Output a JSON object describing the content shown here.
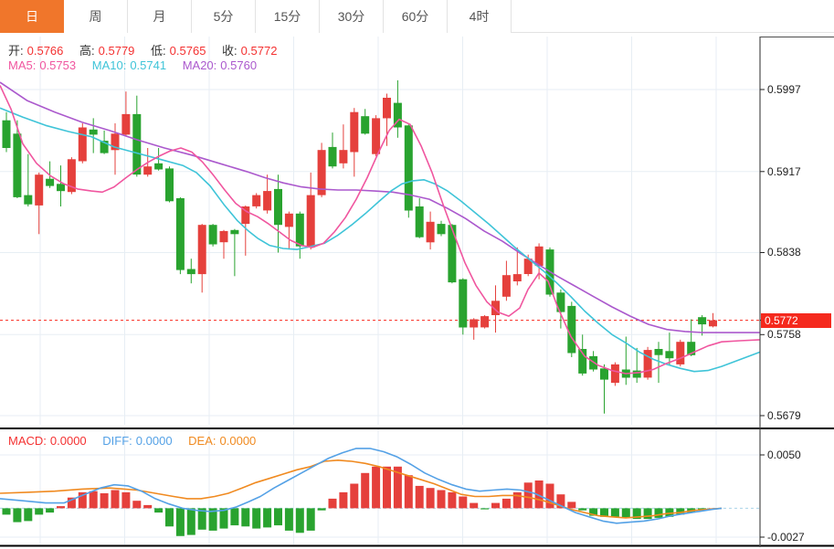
{
  "tabs": {
    "items": [
      {
        "label": "日",
        "active": true
      },
      {
        "label": "周",
        "active": false
      },
      {
        "label": "月",
        "active": false
      },
      {
        "label": "5分",
        "active": false
      },
      {
        "label": "15分",
        "active": false
      },
      {
        "label": "30分",
        "active": false
      },
      {
        "label": "60分",
        "active": false
      },
      {
        "label": "4时",
        "active": false
      }
    ]
  },
  "ohlc_legend": {
    "open_label": "开:",
    "open": "0.5766",
    "high_label": "高:",
    "high": "0.5779",
    "low_label": "低:",
    "low": "0.5765",
    "close_label": "收:",
    "close": "0.5772"
  },
  "ma_legend": {
    "ma5_label": "MA5:",
    "ma5": "0.5753",
    "ma10_label": "MA10:",
    "ma10": "0.5741",
    "ma20_label": "MA20:",
    "ma20": "0.5760"
  },
  "macd_legend": {
    "macd_label": "MACD:",
    "macd": "0.0000",
    "diff_label": "DIFF:",
    "diff": "0.0000",
    "dea_label": "DEA:",
    "dea": "0.0000"
  },
  "colors": {
    "up": "#e5403c",
    "down": "#29a32f",
    "ma5": "#f0569f",
    "ma10": "#3fc4d8",
    "ma20": "#ab59cd",
    "diff": "#54a1e6",
    "dea": "#f08a20",
    "price_line": "#fa2a1e",
    "badge": "#f5291d",
    "grid": "#e7eef4",
    "zero_line": "#a9d3e8",
    "axis_line": "#4d4d4d",
    "accent_tab": "#f0762b"
  },
  "chart_data": {
    "type": "candlestick+macd",
    "title": "",
    "legend_position": "top-left",
    "grid": true,
    "price_axis": {
      "labels": [
        "0.5997",
        "0.5917",
        "0.5838",
        "0.5758",
        "0.5679"
      ],
      "values": [
        0.5997,
        0.5917,
        0.5838,
        0.5758,
        0.5679
      ],
      "current_price": 0.5772,
      "current_price_label": "0.5772"
    },
    "macd_axis": {
      "labels": [
        "0.0050",
        "-0.0027"
      ],
      "values": [
        0.005,
        -0.0027
      ]
    },
    "candles": [
      [
        0.5967,
        0.5975,
        0.5936,
        0.594
      ],
      [
        0.5954,
        0.5967,
        0.5891,
        0.5892
      ],
      [
        0.5894,
        0.5934,
        0.5883,
        0.5885
      ],
      [
        0.5884,
        0.5916,
        0.5856,
        0.5914
      ],
      [
        0.591,
        0.5927,
        0.5901,
        0.5903
      ],
      [
        0.5905,
        0.5923,
        0.5883,
        0.5898
      ],
      [
        0.5897,
        0.5931,
        0.5895,
        0.5929
      ],
      [
        0.5927,
        0.5964,
        0.5925,
        0.596
      ],
      [
        0.5958,
        0.5969,
        0.5935,
        0.5953
      ],
      [
        0.5947,
        0.5957,
        0.5934,
        0.5935
      ],
      [
        0.5938,
        0.5964,
        0.5914,
        0.5954
      ],
      [
        0.5953,
        0.5995,
        0.5951,
        0.5973
      ],
      [
        0.5973,
        0.5991,
        0.5912,
        0.5914
      ],
      [
        0.5914,
        0.594,
        0.5912,
        0.5922
      ],
      [
        0.5925,
        0.594,
        0.5918,
        0.5919
      ],
      [
        0.592,
        0.5922,
        0.5887,
        0.5888
      ],
      [
        0.5891,
        0.5892,
        0.5817,
        0.5821
      ],
      [
        0.5822,
        0.5832,
        0.5808,
        0.5817
      ],
      [
        0.5817,
        0.5866,
        0.5799,
        0.5865
      ],
      [
        0.5865,
        0.5866,
        0.5844,
        0.5846
      ],
      [
        0.5848,
        0.586,
        0.5832,
        0.5859
      ],
      [
        0.586,
        0.5861,
        0.5815,
        0.5856
      ],
      [
        0.5866,
        0.5884,
        0.5835,
        0.5883
      ],
      [
        0.5883,
        0.5896,
        0.5881,
        0.5894
      ],
      [
        0.5879,
        0.5914,
        0.5876,
        0.5898
      ],
      [
        0.59,
        0.5914,
        0.5838,
        0.5865
      ],
      [
        0.5863,
        0.5878,
        0.5841,
        0.5876
      ],
      [
        0.5876,
        0.5878,
        0.5832,
        0.5844
      ],
      [
        0.5843,
        0.5916,
        0.5841,
        0.5894
      ],
      [
        0.5894,
        0.5945,
        0.5892,
        0.5938
      ],
      [
        0.5941,
        0.5955,
        0.592,
        0.5922
      ],
      [
        0.5925,
        0.5963,
        0.592,
        0.5938
      ],
      [
        0.5936,
        0.5979,
        0.5912,
        0.5975
      ],
      [
        0.5971,
        0.5978,
        0.5953,
        0.5954
      ],
      [
        0.5934,
        0.5972,
        0.5932,
        0.5969
      ],
      [
        0.5969,
        0.5993,
        0.5942,
        0.5989
      ],
      [
        0.5984,
        0.6006,
        0.595,
        0.596
      ],
      [
        0.5962,
        0.5963,
        0.5872,
        0.5879
      ],
      [
        0.5883,
        0.5891,
        0.5852,
        0.5853
      ],
      [
        0.5848,
        0.5878,
        0.5841,
        0.5868
      ],
      [
        0.5866,
        0.5869,
        0.5854,
        0.5856
      ],
      [
        0.5865,
        0.5866,
        0.5808,
        0.5809
      ],
      [
        0.5812,
        0.5813,
        0.5758,
        0.5765
      ],
      [
        0.5765,
        0.5774,
        0.5753,
        0.5773
      ],
      [
        0.5765,
        0.5777,
        0.5764,
        0.5776
      ],
      [
        0.5777,
        0.5806,
        0.576,
        0.5791
      ],
      [
        0.5795,
        0.583,
        0.5791,
        0.5816
      ],
      [
        0.581,
        0.5843,
        0.5806,
        0.5817
      ],
      [
        0.5817,
        0.5836,
        0.5815,
        0.5832
      ],
      [
        0.5825,
        0.5847,
        0.5812,
        0.5844
      ],
      [
        0.5841,
        0.5843,
        0.5795,
        0.5797
      ],
      [
        0.5799,
        0.5802,
        0.5764,
        0.578
      ],
      [
        0.5786,
        0.579,
        0.5736,
        0.574
      ],
      [
        0.5744,
        0.5758,
        0.5718,
        0.572
      ],
      [
        0.5737,
        0.5742,
        0.5722,
        0.5724
      ],
      [
        0.5725,
        0.5729,
        0.5681,
        0.5714
      ],
      [
        0.5711,
        0.5731,
        0.5708,
        0.5729
      ],
      [
        0.5724,
        0.5756,
        0.5709,
        0.5716
      ],
      [
        0.5723,
        0.5745,
        0.5711,
        0.5716
      ],
      [
        0.5716,
        0.5746,
        0.5714,
        0.5743
      ],
      [
        0.5744,
        0.5751,
        0.5711,
        0.5738
      ],
      [
        0.5742,
        0.576,
        0.5728,
        0.5735
      ],
      [
        0.5729,
        0.5753,
        0.5727,
        0.5751
      ],
      [
        0.5751,
        0.5773,
        0.5737,
        0.5738
      ],
      [
        0.5775,
        0.5777,
        0.5757,
        0.5768
      ],
      [
        0.5766,
        0.5779,
        0.5765,
        0.5772
      ]
    ],
    "ma5": [
      [
        0,
        0.6001
      ],
      [
        12,
        0.5978
      ],
      [
        25,
        0.5944
      ],
      [
        40,
        0.5925
      ],
      [
        55,
        0.5913
      ],
      [
        70,
        0.5905
      ],
      [
        85,
        0.59
      ],
      [
        100,
        0.5898
      ],
      [
        112,
        0.5897
      ],
      [
        125,
        0.5902
      ],
      [
        138,
        0.5911
      ],
      [
        150,
        0.5919
      ],
      [
        162,
        0.5926
      ],
      [
        174,
        0.5932
      ],
      [
        186,
        0.5937
      ],
      [
        198,
        0.594
      ],
      [
        210,
        0.5936
      ],
      [
        222,
        0.5926
      ],
      [
        234,
        0.5913
      ],
      [
        246,
        0.5899
      ],
      [
        258,
        0.5886
      ],
      [
        270,
        0.5878
      ],
      [
        282,
        0.5873
      ],
      [
        294,
        0.5866
      ],
      [
        306,
        0.5858
      ],
      [
        318,
        0.585
      ],
      [
        330,
        0.5845
      ],
      [
        342,
        0.5843
      ],
      [
        354,
        0.5847
      ],
      [
        366,
        0.5858
      ],
      [
        378,
        0.5872
      ],
      [
        390,
        0.589
      ],
      [
        402,
        0.5911
      ],
      [
        414,
        0.5935
      ],
      [
        426,
        0.5957
      ],
      [
        437,
        0.5968
      ],
      [
        449,
        0.5963
      ],
      [
        461,
        0.5942
      ],
      [
        473,
        0.5916
      ],
      [
        485,
        0.5885
      ],
      [
        497,
        0.5856
      ],
      [
        509,
        0.5828
      ],
      [
        521,
        0.5806
      ],
      [
        533,
        0.579
      ],
      [
        545,
        0.578
      ],
      [
        557,
        0.5776
      ],
      [
        569,
        0.5784
      ],
      [
        578,
        0.5802
      ],
      [
        590,
        0.5818
      ],
      [
        600,
        0.581
      ],
      [
        610,
        0.5786
      ],
      [
        625,
        0.5756
      ],
      [
        640,
        0.5737
      ],
      [
        655,
        0.5728
      ],
      [
        670,
        0.5723
      ],
      [
        685,
        0.572
      ],
      [
        700,
        0.5721
      ],
      [
        715,
        0.5724
      ],
      [
        730,
        0.573
      ],
      [
        745,
        0.5735
      ],
      [
        760,
        0.5741
      ],
      [
        775,
        0.5747
      ],
      [
        790,
        0.5751
      ],
      [
        810,
        0.5752
      ],
      [
        832,
        0.5753
      ]
    ],
    "ma10": [
      [
        0,
        0.5979
      ],
      [
        25,
        0.597
      ],
      [
        50,
        0.5962
      ],
      [
        75,
        0.5956
      ],
      [
        100,
        0.5951
      ],
      [
        125,
        0.5941
      ],
      [
        150,
        0.5935
      ],
      [
        175,
        0.5929
      ],
      [
        200,
        0.5923
      ],
      [
        215,
        0.5916
      ],
      [
        230,
        0.5903
      ],
      [
        245,
        0.5885
      ],
      [
        260,
        0.5869
      ],
      [
        272,
        0.5859
      ],
      [
        282,
        0.5852
      ],
      [
        295,
        0.5845
      ],
      [
        310,
        0.5842
      ],
      [
        325,
        0.5841
      ],
      [
        340,
        0.5844
      ],
      [
        355,
        0.5847
      ],
      [
        370,
        0.5855
      ],
      [
        385,
        0.5865
      ],
      [
        400,
        0.5876
      ],
      [
        415,
        0.5888
      ],
      [
        428,
        0.5898
      ],
      [
        440,
        0.5905
      ],
      [
        452,
        0.5908
      ],
      [
        464,
        0.5909
      ],
      [
        476,
        0.5905
      ],
      [
        490,
        0.5898
      ],
      [
        505,
        0.5888
      ],
      [
        520,
        0.5877
      ],
      [
        535,
        0.5866
      ],
      [
        550,
        0.5854
      ],
      [
        565,
        0.5842
      ],
      [
        580,
        0.5831
      ],
      [
        595,
        0.582
      ],
      [
        610,
        0.5808
      ],
      [
        625,
        0.5795
      ],
      [
        640,
        0.5781
      ],
      [
        655,
        0.5769
      ],
      [
        670,
        0.5758
      ],
      [
        685,
        0.575
      ],
      [
        700,
        0.5741
      ],
      [
        715,
        0.5734
      ],
      [
        730,
        0.5729
      ],
      [
        745,
        0.5725
      ],
      [
        760,
        0.5722
      ],
      [
        775,
        0.5723
      ],
      [
        790,
        0.5727
      ],
      [
        805,
        0.5732
      ],
      [
        820,
        0.5737
      ],
      [
        832,
        0.5741
      ]
    ],
    "ma20": [
      [
        0,
        0.6004
      ],
      [
        30,
        0.5986
      ],
      [
        60,
        0.5975
      ],
      [
        90,
        0.5965
      ],
      [
        120,
        0.5957
      ],
      [
        150,
        0.5948
      ],
      [
        180,
        0.594
      ],
      [
        210,
        0.5933
      ],
      [
        240,
        0.5925
      ],
      [
        270,
        0.5917
      ],
      [
        290,
        0.5911
      ],
      [
        310,
        0.5906
      ],
      [
        330,
        0.5902
      ],
      [
        350,
        0.59
      ],
      [
        370,
        0.5899
      ],
      [
        390,
        0.5899
      ],
      [
        410,
        0.5898
      ],
      [
        430,
        0.5897
      ],
      [
        450,
        0.5894
      ],
      [
        470,
        0.589
      ],
      [
        490,
        0.5881
      ],
      [
        510,
        0.5871
      ],
      [
        530,
        0.5859
      ],
      [
        550,
        0.5849
      ],
      [
        570,
        0.5837
      ],
      [
        590,
        0.5826
      ],
      [
        610,
        0.5815
      ],
      [
        630,
        0.5805
      ],
      [
        650,
        0.5795
      ],
      [
        670,
        0.5785
      ],
      [
        690,
        0.5776
      ],
      [
        710,
        0.5768
      ],
      [
        730,
        0.5763
      ],
      [
        750,
        0.5761
      ],
      [
        770,
        0.576
      ],
      [
        790,
        0.576
      ],
      [
        810,
        0.576
      ],
      [
        832,
        0.576
      ]
    ],
    "macd_hist": [
      -0.0006,
      -0.0013,
      -0.0012,
      -0.0006,
      -0.0004,
      0.0002,
      0.001,
      0.0015,
      0.0016,
      0.0014,
      0.0017,
      0.0015,
      0.0007,
      0.0003,
      -0.0004,
      -0.0017,
      -0.0026,
      -0.0025,
      -0.002,
      -0.0021,
      -0.0019,
      -0.0016,
      -0.0017,
      -0.0019,
      -0.0018,
      -0.0016,
      -0.0021,
      -0.0023,
      -0.0021,
      -0.0002,
      0.0009,
      0.0015,
      0.0023,
      0.0033,
      0.0039,
      0.0039,
      0.0039,
      0.0031,
      0.0021,
      0.0019,
      0.0017,
      0.0015,
      0.0011,
      0.0005,
      -0.0001,
      0.0005,
      0.0009,
      0.0015,
      0.0024,
      0.0026,
      0.0023,
      0.0013,
      0.0006,
      -0.0002,
      -0.0007,
      -0.0008,
      -0.0008,
      -0.0009,
      -0.001,
      -0.001,
      -0.0009,
      -0.0008,
      -0.0006,
      -0.0004,
      -0.0002,
      0.0
    ],
    "diff_line": [
      [
        0,
        0.0009
      ],
      [
        25,
        0.0007
      ],
      [
        50,
        0.0005
      ],
      [
        70,
        0.0005
      ],
      [
        90,
        0.0012
      ],
      [
        110,
        0.0019
      ],
      [
        125,
        0.0022
      ],
      [
        140,
        0.0021
      ],
      [
        155,
        0.0016
      ],
      [
        170,
        0.0009
      ],
      [
        185,
        0.0004
      ],
      [
        200,
        0.0
      ],
      [
        215,
        -0.0002
      ],
      [
        230,
        -0.0003
      ],
      [
        245,
        -0.0002
      ],
      [
        258,
        0.0001
      ],
      [
        272,
        0.0006
      ],
      [
        285,
        0.0011
      ],
      [
        300,
        0.0019
      ],
      [
        315,
        0.0026
      ],
      [
        330,
        0.0033
      ],
      [
        345,
        0.004
      ],
      [
        360,
        0.0047
      ],
      [
        375,
        0.0052
      ],
      [
        390,
        0.0056
      ],
      [
        405,
        0.0056
      ],
      [
        420,
        0.0053
      ],
      [
        435,
        0.0048
      ],
      [
        450,
        0.0041
      ],
      [
        465,
        0.0033
      ],
      [
        480,
        0.0027
      ],
      [
        495,
        0.0022
      ],
      [
        510,
        0.0018
      ],
      [
        525,
        0.0016
      ],
      [
        540,
        0.0017
      ],
      [
        555,
        0.0018
      ],
      [
        570,
        0.0017
      ],
      [
        585,
        0.0014
      ],
      [
        600,
        0.0008
      ],
      [
        615,
        0.0002
      ],
      [
        630,
        -0.0004
      ],
      [
        645,
        -0.0008
      ],
      [
        660,
        -0.0012
      ],
      [
        675,
        -0.0014
      ],
      [
        690,
        -0.0013
      ],
      [
        705,
        -0.0012
      ],
      [
        720,
        -0.001
      ],
      [
        735,
        -0.0007
      ],
      [
        750,
        -0.0005
      ],
      [
        765,
        -0.0003
      ],
      [
        780,
        -0.0001
      ],
      [
        790,
        0.0
      ]
    ],
    "dea_line": [
      [
        0,
        0.0014
      ],
      [
        30,
        0.0015
      ],
      [
        60,
        0.0016
      ],
      [
        90,
        0.0018
      ],
      [
        120,
        0.0019
      ],
      [
        150,
        0.0017
      ],
      [
        170,
        0.0014
      ],
      [
        190,
        0.0011
      ],
      [
        205,
        0.0009
      ],
      [
        220,
        0.0009
      ],
      [
        235,
        0.0011
      ],
      [
        250,
        0.0014
      ],
      [
        265,
        0.0019
      ],
      [
        280,
        0.0024
      ],
      [
        295,
        0.0028
      ],
      [
        310,
        0.0032
      ],
      [
        325,
        0.0036
      ],
      [
        340,
        0.0039
      ],
      [
        355,
        0.0044
      ],
      [
        370,
        0.0045
      ],
      [
        385,
        0.0044
      ],
      [
        400,
        0.0042
      ],
      [
        415,
        0.0039
      ],
      [
        430,
        0.0035
      ],
      [
        445,
        0.0031
      ],
      [
        460,
        0.0027
      ],
      [
        475,
        0.0023
      ],
      [
        490,
        0.0018
      ],
      [
        505,
        0.0013
      ],
      [
        520,
        0.0011
      ],
      [
        535,
        0.0011
      ],
      [
        550,
        0.0012
      ],
      [
        565,
        0.0012
      ],
      [
        580,
        0.001
      ],
      [
        595,
        0.0007
      ],
      [
        610,
        0.0003
      ],
      [
        625,
        -0.0001
      ],
      [
        640,
        -0.0004
      ],
      [
        655,
        -0.0007
      ],
      [
        670,
        -0.0008
      ],
      [
        685,
        -0.0009
      ],
      [
        700,
        -0.0008
      ],
      [
        715,
        -0.0007
      ],
      [
        730,
        -0.0005
      ],
      [
        745,
        -0.0004
      ],
      [
        760,
        -0.0002
      ],
      [
        775,
        -0.0001
      ],
      [
        790,
        0.0
      ]
    ]
  }
}
